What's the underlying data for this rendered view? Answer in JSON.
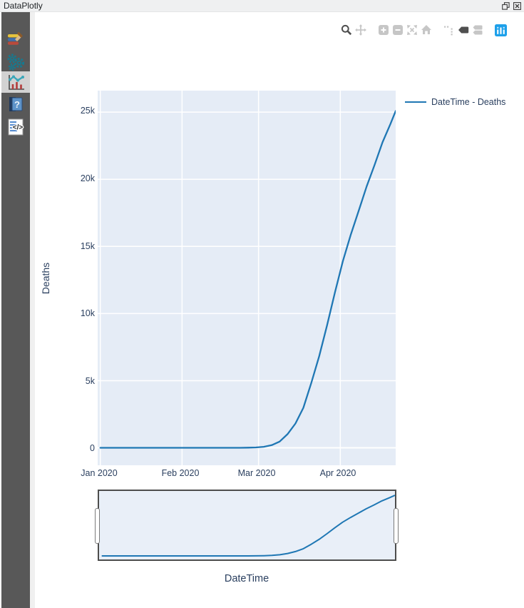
{
  "window": {
    "title": "DataPlotly",
    "buttons": [
      {
        "name": "float-button"
      },
      {
        "name": "close-button"
      }
    ]
  },
  "sidebar": {
    "items": [
      {
        "name": "plot-properties",
        "icon": "paintbrush-icon",
        "selected": false
      },
      {
        "name": "plot-settings",
        "icon": "gears-icon",
        "selected": false
      },
      {
        "name": "plot-view",
        "icon": "chart-icon",
        "selected": true
      },
      {
        "name": "help",
        "icon": "help-book-icon",
        "selected": false
      },
      {
        "name": "code",
        "icon": "code-page-icon",
        "selected": false
      }
    ]
  },
  "modebar": {
    "icons": [
      "zoom",
      "pan",
      "zoom-in",
      "zoom-out",
      "autoscale",
      "reset-axes",
      "toggle-spikelines",
      "hover-closest",
      "hover-compare",
      "plotly-logo"
    ],
    "active_color": "#4f4f4f",
    "inactive_color": "#c6c6c6",
    "logo_color": "#1da0ea"
  },
  "legend": {
    "label": "DateTime - Deaths"
  },
  "chart_data": {
    "type": "line",
    "title": "",
    "xlabel": "DateTime",
    "ylabel": "Deaths",
    "grid": true,
    "plot_bg": "#e5ecf6",
    "grid_color": "#ffffff",
    "text_color": "#2a3f5f",
    "legend_position": "top-right",
    "rangeslider": true,
    "x_range": [
      "2019-12-31",
      "2020-04-22"
    ],
    "y_range": [
      -1300,
      26600
    ],
    "x_ticks": [
      "Jan 2020",
      "Feb 2020",
      "Mar 2020",
      "Apr 2020"
    ],
    "x_tick_dates": [
      "2020-01-01",
      "2020-02-01",
      "2020-03-01",
      "2020-04-01"
    ],
    "y_ticks": [
      "0",
      "5k",
      "10k",
      "15k",
      "20k",
      "25k"
    ],
    "y_tick_values": [
      0,
      5000,
      10000,
      15000,
      20000,
      25000
    ],
    "series": [
      {
        "name": "DateTime - Deaths",
        "color": "#1f77b4",
        "points": [
          [
            "2020-01-01",
            0
          ],
          [
            "2020-01-10",
            0
          ],
          [
            "2020-01-20",
            0
          ],
          [
            "2020-02-01",
            0
          ],
          [
            "2020-02-10",
            0
          ],
          [
            "2020-02-20",
            0
          ],
          [
            "2020-02-23",
            3
          ],
          [
            "2020-02-26",
            12
          ],
          [
            "2020-02-29",
            29
          ],
          [
            "2020-03-03",
            79
          ],
          [
            "2020-03-06",
            197
          ],
          [
            "2020-03-09",
            463
          ],
          [
            "2020-03-12",
            1016
          ],
          [
            "2020-03-15",
            1809
          ],
          [
            "2020-03-18",
            2978
          ],
          [
            "2020-03-21",
            4825
          ],
          [
            "2020-03-24",
            6820
          ],
          [
            "2020-03-27",
            9134
          ],
          [
            "2020-03-30",
            11591
          ],
          [
            "2020-04-02",
            13915
          ],
          [
            "2020-04-05",
            15887
          ],
          [
            "2020-04-08",
            17669
          ],
          [
            "2020-04-11",
            19468
          ],
          [
            "2020-04-14",
            21067
          ],
          [
            "2020-04-17",
            22745
          ],
          [
            "2020-04-20",
            24114
          ],
          [
            "2020-04-22",
            25085
          ]
        ]
      }
    ]
  }
}
